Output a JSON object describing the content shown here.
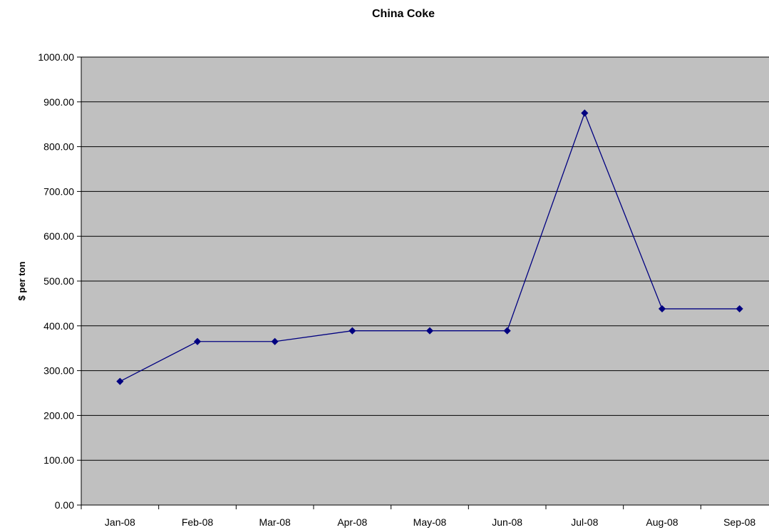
{
  "chart_data": {
    "type": "line",
    "title": "China Coke",
    "xlabel": "",
    "ylabel": "$ per ton",
    "categories": [
      "Jan-08",
      "Feb-08",
      "Mar-08",
      "Apr-08",
      "May-08",
      "Jun-08",
      "Jul-08",
      "Aug-08",
      "Sep-08"
    ],
    "y_tick_labels": [
      "0.00",
      "100.00",
      "200.00",
      "300.00",
      "400.00",
      "500.00",
      "600.00",
      "700.00",
      "800.00",
      "900.00",
      "1000.00"
    ],
    "ylim": [
      0,
      1000
    ],
    "grid": true,
    "legend": "none",
    "series": [
      {
        "values": [
          276,
          365,
          365,
          389,
          389,
          389,
          875,
          438,
          438
        ]
      }
    ],
    "colors": {
      "plot_background": "#c0c0c0",
      "line": "#000080",
      "gridline": "#000000"
    }
  }
}
